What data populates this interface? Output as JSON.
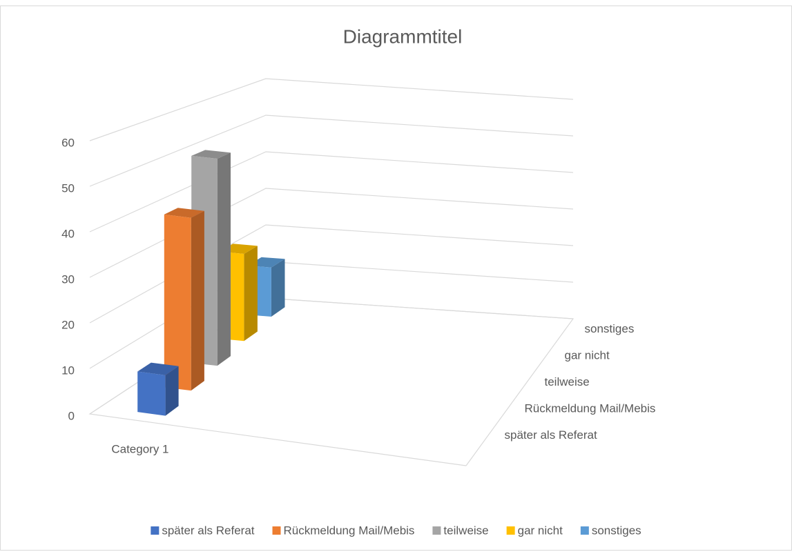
{
  "chart_data": {
    "type": "bar3d",
    "title": "Diagrammtitel",
    "categories": [
      "Category 1"
    ],
    "series": [
      {
        "name": "später als Referat",
        "color": "#4472c4",
        "values": [
          9
        ]
      },
      {
        "name": "Rückmeldung Mail/Mebis",
        "color": "#ed7d31",
        "values": [
          40
        ]
      },
      {
        "name": "teilweise",
        "color": "#a5a5a5",
        "values": [
          50
        ]
      },
      {
        "name": "gar nicht",
        "color": "#ffc000",
        "values": [
          22
        ]
      },
      {
        "name": "sonstiges",
        "color": "#5b9bd5",
        "values": [
          13
        ]
      }
    ],
    "ylim": [
      0,
      60
    ],
    "yticks": [
      0,
      10,
      20,
      30,
      40,
      50,
      60
    ],
    "grid": true,
    "legend": "bottom"
  }
}
